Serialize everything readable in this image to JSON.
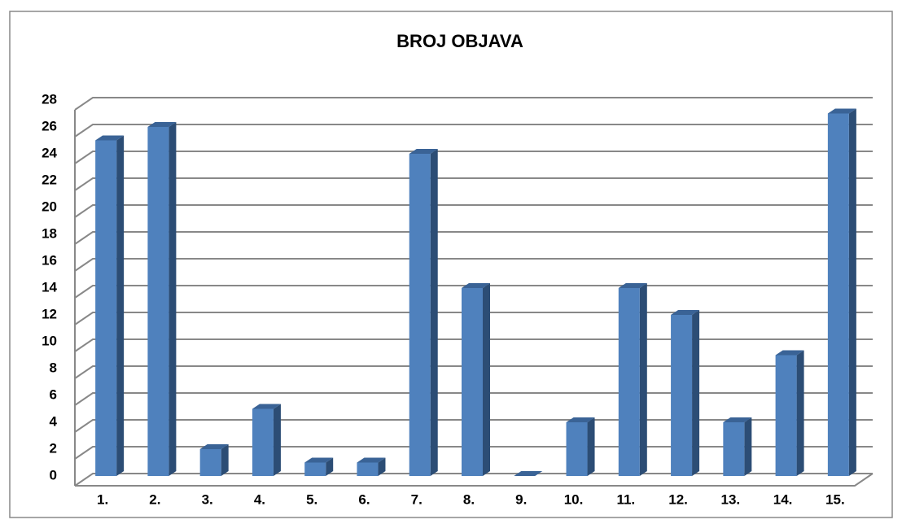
{
  "chart_data": {
    "type": "bar3d",
    "title": "BROJ OBJAVA",
    "categories": [
      "1.",
      "2.",
      "3.",
      "4.",
      "5.",
      "6.",
      "7.",
      "8.",
      "9.",
      "10.",
      "11.",
      "12.",
      "13.",
      "14.",
      "15."
    ],
    "values": [
      25,
      26,
      2,
      5,
      1,
      1,
      24,
      14,
      0,
      4,
      14,
      12,
      4,
      9,
      27
    ],
    "color": "#4f81bd",
    "ylim": [
      0,
      28
    ],
    "yticks": [
      0,
      2,
      4,
      6,
      8,
      10,
      12,
      14,
      16,
      18,
      20,
      22,
      24,
      26,
      28
    ],
    "grid": true
  }
}
